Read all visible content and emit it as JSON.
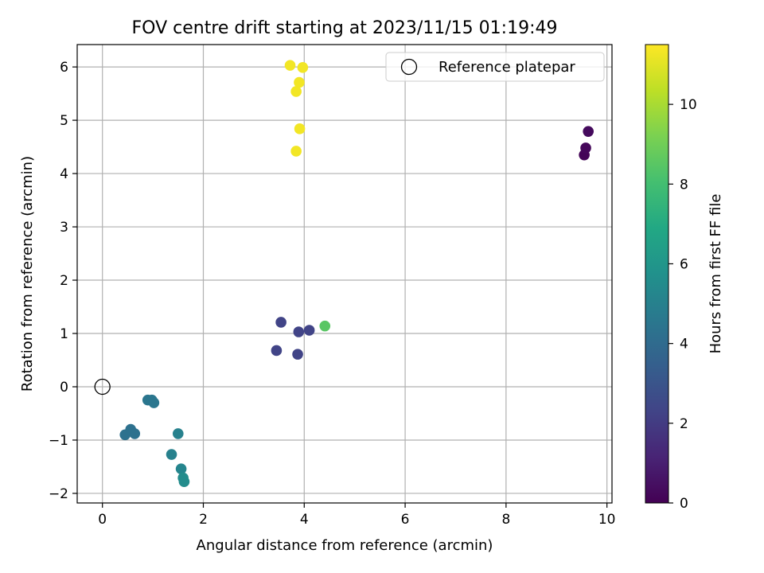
{
  "chart_data": {
    "type": "scatter",
    "title": "FOV centre drift starting at 2023/11/15 01:19:49",
    "xlabel": "Angular distance from reference (arcmin)",
    "ylabel": "Rotation from reference (arcmin)",
    "xlim": [
      -0.5,
      10.1
    ],
    "ylim": [
      -2.18,
      6.42
    ],
    "xticks": [
      0,
      2,
      4,
      6,
      8,
      10
    ],
    "yticks": [
      -2,
      -1,
      0,
      1,
      2,
      3,
      4,
      5,
      6
    ],
    "grid": true,
    "colorbar": {
      "label": "Hours from first FF file",
      "colormap": "viridis",
      "range": [
        0,
        11.5
      ],
      "ticks": [
        0,
        2,
        4,
        6,
        8,
        10
      ]
    },
    "legend": {
      "position": "top-right",
      "entries": [
        {
          "label": "Reference platepar",
          "marker": "open-circle",
          "color": "#000000"
        }
      ]
    },
    "reference_point": {
      "x": 0,
      "y": 0
    },
    "points": [
      {
        "x": 9.55,
        "y": 4.35,
        "hours": 0.1
      },
      {
        "x": 9.58,
        "y": 4.48,
        "hours": 0.2
      },
      {
        "x": 9.63,
        "y": 4.79,
        "hours": 0.3
      },
      {
        "x": 3.45,
        "y": 0.68,
        "hours": 2.3
      },
      {
        "x": 3.54,
        "y": 1.21,
        "hours": 2.3
      },
      {
        "x": 3.87,
        "y": 0.61,
        "hours": 2.3
      },
      {
        "x": 3.89,
        "y": 1.03,
        "hours": 2.3
      },
      {
        "x": 4.1,
        "y": 1.06,
        "hours": 2.3
      },
      {
        "x": 0.45,
        "y": -0.9,
        "hours": 4.3
      },
      {
        "x": 0.56,
        "y": -0.8,
        "hours": 4.3
      },
      {
        "x": 0.64,
        "y": -0.88,
        "hours": 4.3
      },
      {
        "x": 0.9,
        "y": -0.25,
        "hours": 4.5
      },
      {
        "x": 0.98,
        "y": -0.25,
        "hours": 4.5
      },
      {
        "x": 1.02,
        "y": -0.3,
        "hours": 4.5
      },
      {
        "x": 1.5,
        "y": -0.88,
        "hours": 5.0
      },
      {
        "x": 1.37,
        "y": -1.27,
        "hours": 5.0
      },
      {
        "x": 1.56,
        "y": -1.54,
        "hours": 5.2
      },
      {
        "x": 1.6,
        "y": -1.71,
        "hours": 5.5
      },
      {
        "x": 1.62,
        "y": -1.78,
        "hours": 5.5
      },
      {
        "x": 4.41,
        "y": 1.14,
        "hours": 8.5
      },
      {
        "x": 3.72,
        "y": 6.03,
        "hours": 11.3
      },
      {
        "x": 3.97,
        "y": 5.99,
        "hours": 11.3
      },
      {
        "x": 3.9,
        "y": 5.71,
        "hours": 11.3
      },
      {
        "x": 3.84,
        "y": 5.54,
        "hours": 11.3
      },
      {
        "x": 3.91,
        "y": 4.84,
        "hours": 11.3
      },
      {
        "x": 3.84,
        "y": 4.42,
        "hours": 11.3
      }
    ]
  }
}
